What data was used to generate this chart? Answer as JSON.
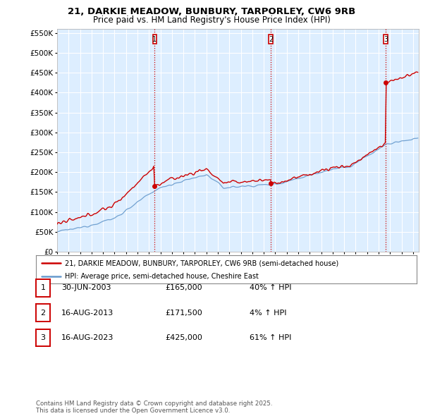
{
  "title1": "21, DARKIE MEADOW, BUNBURY, TARPORLEY, CW6 9RB",
  "title2": "Price paid vs. HM Land Registry's House Price Index (HPI)",
  "property_label": "21, DARKIE MEADOW, BUNBURY, TARPORLEY, CW6 9RB (semi-detached house)",
  "hpi_label": "HPI: Average price, semi-detached house, Cheshire East",
  "sale_dates": [
    2003.5,
    2013.625,
    2023.625
  ],
  "sale_prices": [
    165000,
    171500,
    425000
  ],
  "sale_labels": [
    "1",
    "2",
    "3"
  ],
  "table_rows": [
    [
      "1",
      "30-JUN-2003",
      "£165,000",
      "40% ↑ HPI"
    ],
    [
      "2",
      "16-AUG-2013",
      "£171,500",
      "4% ↑ HPI"
    ],
    [
      "3",
      "16-AUG-2023",
      "£425,000",
      "61% ↑ HPI"
    ]
  ],
  "footer": "Contains HM Land Registry data © Crown copyright and database right 2025.\nThis data is licensed under the Open Government Licence v3.0.",
  "ylim": [
    0,
    560000
  ],
  "yticks": [
    0,
    50000,
    100000,
    150000,
    200000,
    250000,
    300000,
    350000,
    400000,
    450000,
    500000,
    550000
  ],
  "plot_bg_color": "#ddeeff",
  "grid_color": "#ffffff",
  "property_line_color": "#cc0000",
  "hpi_line_color": "#6699cc",
  "sale_vline_color": "#cc0000",
  "sale_box_color": "#cc0000",
  "xlim_start": 1995.0,
  "xlim_end": 2026.5
}
